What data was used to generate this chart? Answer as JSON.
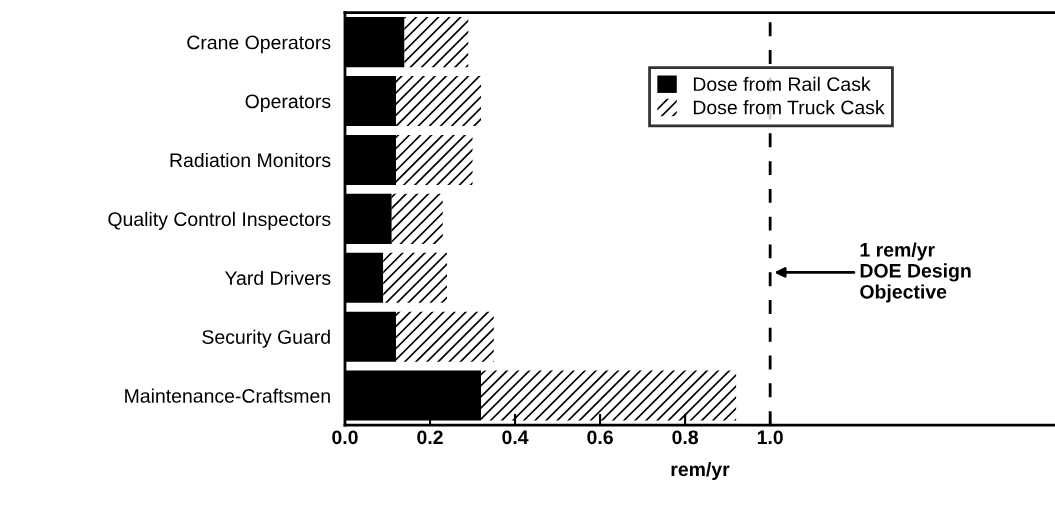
{
  "chart_data": {
    "type": "bar",
    "orientation": "horizontal",
    "stacked": true,
    "categories": [
      "Crane Operators",
      "Operators",
      "Radiation Monitors",
      "Quality Control Inspectors",
      "Yard Drivers",
      "Security Guard",
      "Maintenance-Craftsmen"
    ],
    "series": [
      {
        "name": "Dose from Rail Cask",
        "color": "#000000",
        "values": [
          0.14,
          0.12,
          0.12,
          0.11,
          0.09,
          0.12,
          0.32
        ]
      },
      {
        "name": "Dose from Truck Cask",
        "color": "#ffffff",
        "values": [
          0.15,
          0.2,
          0.18,
          0.12,
          0.15,
          0.23,
          0.6
        ]
      }
    ],
    "xlabel": "rem/yr",
    "xlim": [
      0,
      1.67
    ],
    "xticks": [
      {
        "value": 0,
        "label": "0.0"
      },
      {
        "value": 0.2,
        "label": "0.2"
      },
      {
        "value": 0.4,
        "label": "0.4"
      },
      {
        "value": 0.6,
        "label": "0.6"
      },
      {
        "value": 0.8,
        "label": "0.8"
      },
      {
        "value": 1.0,
        "label": "1.0"
      }
    ],
    "ref_lines": [
      {
        "axis": "x",
        "value": 1.0,
        "label": "1 rem/yr\nDOE Design\nObjective",
        "color": "#000000",
        "line_style": "dashed"
      }
    ],
    "legend": "top",
    "grid": false
  }
}
